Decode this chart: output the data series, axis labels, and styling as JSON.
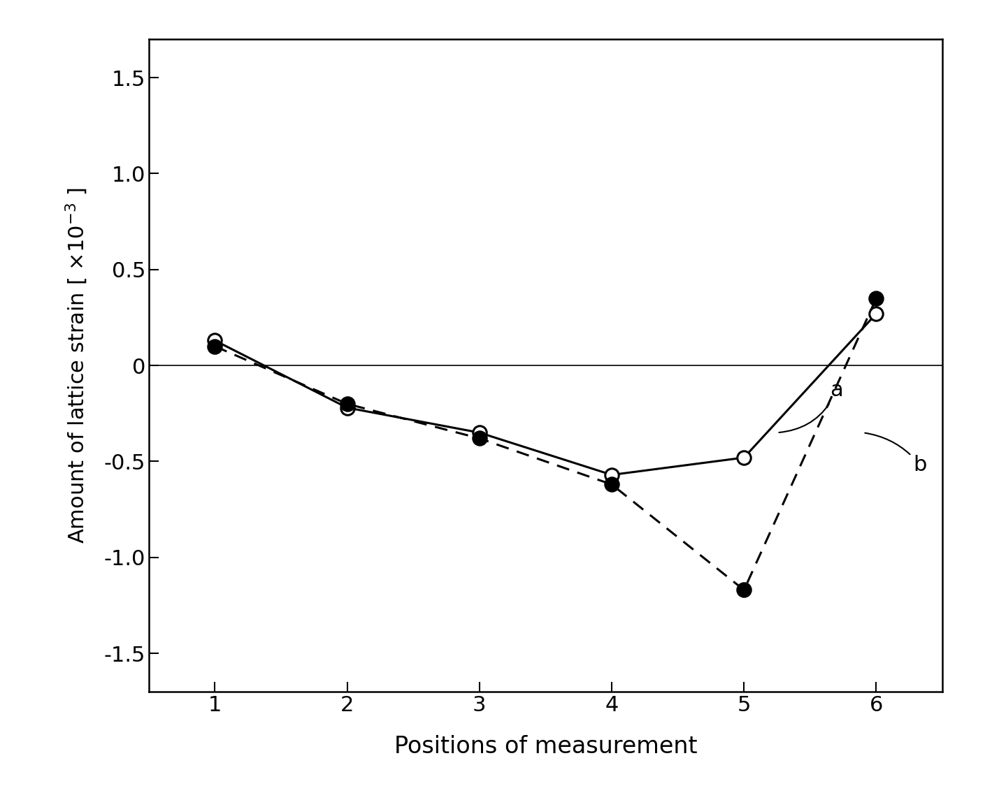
{
  "x": [
    1,
    2,
    3,
    4,
    5,
    6
  ],
  "series_a_y": [
    0.13,
    -0.22,
    -0.35,
    -0.57,
    -0.48,
    0.27
  ],
  "series_b_y": [
    0.1,
    -0.2,
    -0.38,
    -0.62,
    -1.17,
    0.35
  ],
  "xlabel": "Positions of measurement",
  "ylim": [
    -1.7,
    1.7
  ],
  "xlim": [
    0.5,
    6.5
  ],
  "yticks": [
    -1.5,
    -1.0,
    -0.5,
    0,
    0.5,
    1.0,
    1.5
  ],
  "ytick_labels": [
    "-1.5",
    "-1.0",
    "-0.5",
    "0",
    "0.5",
    "1.0",
    "1.5"
  ],
  "xticks": [
    1,
    2,
    3,
    4,
    5,
    6
  ],
  "background_color": "#ffffff",
  "line_color": "#000000",
  "marker_size": 14,
  "linewidth": 2.2
}
